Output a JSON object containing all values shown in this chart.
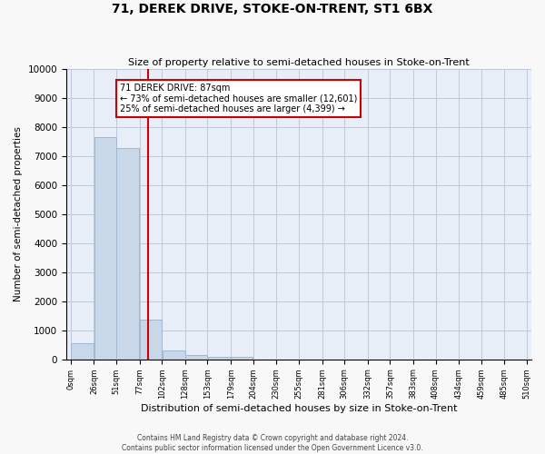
{
  "title": "71, DEREK DRIVE, STOKE-ON-TRENT, ST1 6BX",
  "subtitle": "Size of property relative to semi-detached houses in Stoke-on-Trent",
  "xlabel": "Distribution of semi-detached houses by size in Stoke-on-Trent",
  "ylabel": "Number of semi-detached properties",
  "footer_line1": "Contains HM Land Registry data © Crown copyright and database right 2024.",
  "footer_line2": "Contains public sector information licensed under the Open Government Licence v3.0.",
  "bar_edges": [
    0,
    26,
    51,
    77,
    102,
    128,
    153,
    179,
    204,
    230,
    255,
    281,
    306,
    332,
    357,
    383,
    408,
    434,
    459,
    485,
    510
  ],
  "bar_heights": [
    550,
    7650,
    7270,
    1360,
    310,
    145,
    100,
    70,
    0,
    0,
    0,
    0,
    0,
    0,
    0,
    0,
    0,
    0,
    0,
    0
  ],
  "bar_color": "#c8d8e8",
  "bar_edge_color": "#a0b8d0",
  "property_size": 87,
  "property_line_color": "#cc0000",
  "annotation_text_line1": "71 DEREK DRIVE: 87sqm",
  "annotation_text_line2": "← 73% of semi-detached houses are smaller (12,601)",
  "annotation_text_line3": "25% of semi-detached houses are larger (4,399) →",
  "annotation_box_color": "#ffffff",
  "annotation_box_edge": "#cc0000",
  "ylim": [
    0,
    10000
  ],
  "yticks": [
    0,
    1000,
    2000,
    3000,
    4000,
    5000,
    6000,
    7000,
    8000,
    9000,
    10000
  ],
  "grid_color": "#c0c8d8",
  "bg_color": "#e8eef8",
  "fig_bg_color": "#f8f8f8"
}
